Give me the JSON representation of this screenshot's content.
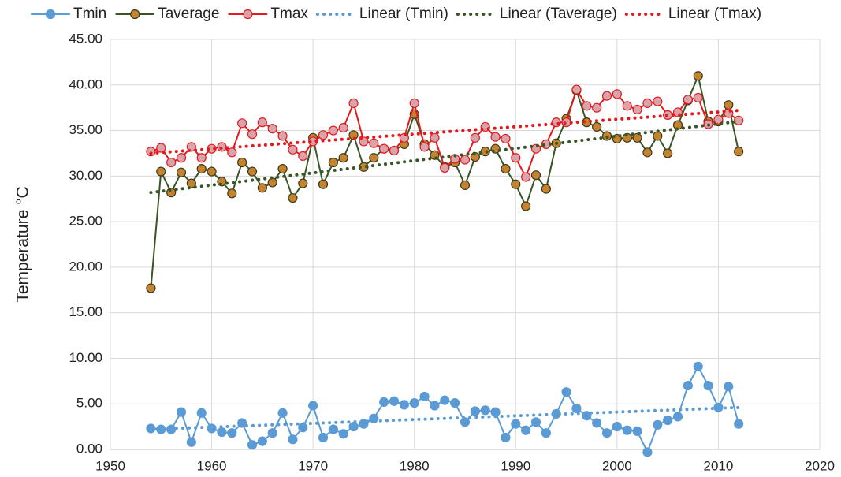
{
  "chart_data": {
    "type": "line",
    "y_label": "Temperature  °C",
    "xlim": [
      1950,
      2020
    ],
    "xticks": [
      1950,
      1960,
      1970,
      1980,
      1990,
      2000,
      2010,
      2020
    ],
    "ylim": [
      0,
      45
    ],
    "yticks": [
      {
        "value": 0,
        "label": "0.00"
      },
      {
        "value": 5,
        "label": "5.00"
      },
      {
        "value": 10,
        "label": "10.00"
      },
      {
        "value": 15,
        "label": "15.00"
      },
      {
        "value": 20,
        "label": "20.00"
      },
      {
        "value": 25,
        "label": "25.00"
      },
      {
        "value": 30,
        "label": "30.00"
      },
      {
        "value": 35,
        "label": "35.00"
      },
      {
        "value": 40,
        "label": "40.00"
      },
      {
        "value": 45,
        "label": "45.00"
      }
    ],
    "grid": true,
    "legend": "top",
    "x": [
      1954,
      1955,
      1956,
      1957,
      1958,
      1959,
      1960,
      1961,
      1962,
      1963,
      1964,
      1965,
      1966,
      1967,
      1968,
      1969,
      1970,
      1971,
      1972,
      1973,
      1974,
      1975,
      1976,
      1977,
      1978,
      1979,
      1980,
      1981,
      1982,
      1983,
      1984,
      1985,
      1986,
      1987,
      1988,
      1989,
      1990,
      1991,
      1992,
      1993,
      1994,
      1995,
      1996,
      1997,
      1998,
      1999,
      2000,
      2001,
      2002,
      2003,
      2004,
      2005,
      2006,
      2007,
      2008,
      2009,
      2010,
      2011,
      2012
    ],
    "series": [
      {
        "name": "Tmin",
        "color": "#5b9bd5",
        "marker_fill": "#5b9bd5",
        "values": [
          2.3,
          2.2,
          2.2,
          4.1,
          0.8,
          4.0,
          2.3,
          1.9,
          1.8,
          2.9,
          0.5,
          0.9,
          1.8,
          4.0,
          1.1,
          2.4,
          4.8,
          1.3,
          2.2,
          1.7,
          2.5,
          2.8,
          3.4,
          5.2,
          5.3,
          4.9,
          5.1,
          5.8,
          4.8,
          5.4,
          5.1,
          3.0,
          4.2,
          4.3,
          4.1,
          1.3,
          2.8,
          2.1,
          3.0,
          1.8,
          3.9,
          6.3,
          4.5,
          3.7,
          2.9,
          1.8,
          2.5,
          2.1,
          2.0,
          -0.3,
          2.7,
          3.2,
          3.6,
          7.0,
          9.1,
          7.0,
          4.6,
          6.9,
          2.8
        ]
      },
      {
        "name": "Taverage",
        "color": "#375623",
        "marker_fill": "#c5822f",
        "values": [
          17.7,
          30.5,
          28.2,
          30.4,
          29.2,
          30.8,
          30.5,
          29.4,
          28.1,
          31.5,
          30.5,
          28.7,
          29.3,
          30.8,
          27.6,
          29.2,
          34.2,
          29.1,
          31.5,
          32.0,
          34.5,
          31.0,
          32.0,
          33.0,
          32.8,
          33.5,
          36.8,
          33.5,
          32.3,
          31.0,
          31.5,
          29.0,
          32.1,
          32.7,
          33.0,
          30.8,
          29.1,
          26.7,
          30.1,
          28.6,
          33.6,
          36.3,
          39.4,
          35.9,
          35.4,
          34.4,
          34.1,
          34.2,
          34.2,
          32.6,
          34.4,
          32.5,
          35.6,
          38.3,
          41.0,
          36.0,
          36.0,
          37.8,
          32.7
        ]
      },
      {
        "name": "Tmax",
        "color": "#e31a1c",
        "marker_fill": "#d9a3ac",
        "values": [
          32.7,
          33.1,
          31.5,
          32.0,
          33.2,
          32.0,
          33.0,
          33.2,
          32.6,
          35.8,
          34.6,
          35.9,
          35.2,
          34.4,
          32.9,
          32.2,
          33.8,
          34.5,
          35.0,
          35.3,
          38.0,
          33.8,
          33.6,
          33.0,
          32.8,
          34.2,
          38.0,
          33.2,
          34.2,
          30.9,
          31.9,
          31.8,
          34.2,
          35.4,
          34.3,
          34.1,
          32.0,
          29.9,
          33.0,
          33.5,
          35.9,
          35.9,
          39.5,
          37.7,
          37.5,
          38.8,
          39.0,
          37.7,
          37.3,
          38.0,
          38.2,
          36.7,
          37.0,
          38.4,
          38.6,
          35.7,
          36.2,
          36.9,
          36.1
        ]
      },
      {
        "name": "Linear (Tmin)",
        "color": "#5b9bd5",
        "dashed": true,
        "x": [
          1954,
          2012
        ],
        "values": [
          2.2,
          4.6
        ]
      },
      {
        "name": "Linear (Taverage)",
        "color": "#375623",
        "dashed": true,
        "x": [
          1954,
          2012
        ],
        "values": [
          28.2,
          36.0
        ]
      },
      {
        "name": "Linear (Tmax)",
        "color": "#e31a1c",
        "dashed": true,
        "x": [
          1954,
          2012
        ],
        "values": [
          32.5,
          37.2
        ]
      }
    ]
  }
}
